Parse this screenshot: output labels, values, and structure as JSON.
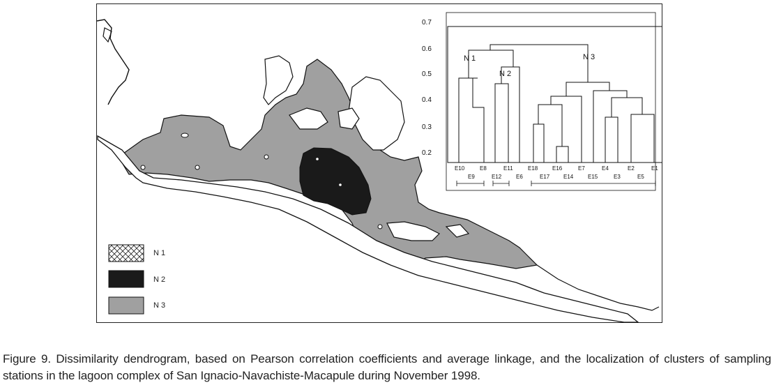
{
  "caption": "Figure 9. Dissimilarity dendrogram, based on Pearson correlation coefficients and average linkage, and the localization of clusters of sampling stations in the lagoon complex of San Ignacio-Navachiste-Macapule during November 1998.",
  "legend": [
    {
      "key": "N1",
      "label": "N 1",
      "pattern": "crosshatch"
    },
    {
      "key": "N2",
      "label": "N 2",
      "color": "#1a1a1a"
    },
    {
      "key": "N3",
      "label": "N 3",
      "color": "#a0a0a0"
    }
  ],
  "dendrogram": {
    "y_ticks": [
      "0.7",
      "0.6",
      "0.5",
      "0.4",
      "0.3",
      "0.2"
    ],
    "cluster_labels": [
      "N 1",
      "N 2",
      "N 3"
    ],
    "leaves_top": [
      "E10",
      "E8",
      "E11",
      "E18",
      "E16",
      "E7",
      "E4",
      "E2",
      "E1"
    ],
    "leaves_bottom": [
      "E9",
      "E12",
      "E6",
      "E17",
      "E14",
      "E15",
      "E3",
      "E5"
    ]
  }
}
